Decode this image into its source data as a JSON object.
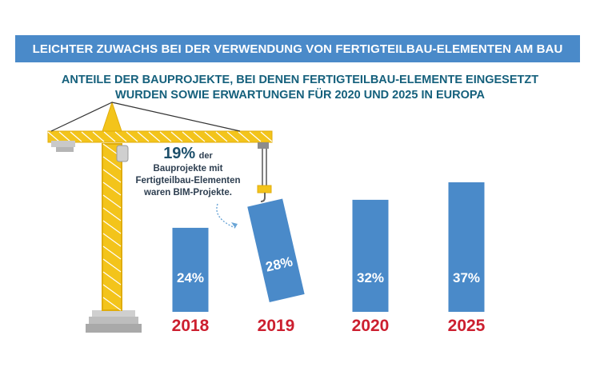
{
  "header": {
    "title": "LEICHTER ZUWACHS BEI DER VERWENDUNG VON FERTIGTEILBAU-ELEMENTEN AM BAU",
    "subtitle_line1": "ANTEILE DER BAUPROJEKTE, BEI DENEN FERTIGTEILBAU-ELEMENTE EINGESETZT",
    "subtitle_line2": "WURDEN SOWIE ERWARTUNGEN FÜR 2020 UND 2025 IN EUROPA"
  },
  "callout": {
    "value": "19%",
    "word": "der",
    "line1": "Bauprojekte mit",
    "line2": "Fertigteilbau-Elementen",
    "line3": "waren BIM-Projekte."
  },
  "colors": {
    "banner": "#4a8ac9",
    "bar": "#4a8ac9",
    "year": "#cc1f2f",
    "crane": "#f3c41b",
    "subtitle": "#15607c"
  },
  "chart_data": {
    "type": "bar",
    "categories": [
      "2018",
      "2019",
      "2020",
      "2025"
    ],
    "values": [
      24,
      28,
      32,
      37
    ],
    "value_labels": [
      "24%",
      "28%",
      "32%",
      "37%"
    ],
    "unit": "%",
    "title": "",
    "xlabel": "",
    "ylabel": "",
    "ylim": [
      0,
      40
    ],
    "grid": false,
    "legend": "none",
    "annotation": "2019 bar is shown tilted, hanging from a crane hook"
  }
}
